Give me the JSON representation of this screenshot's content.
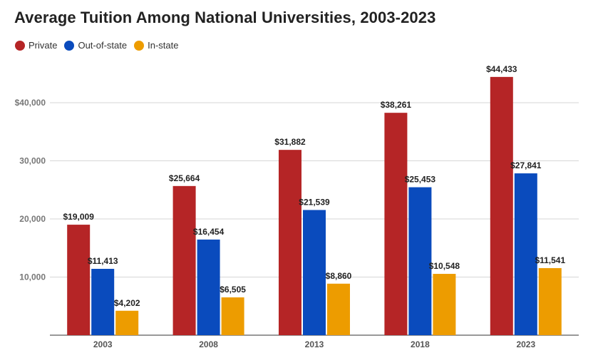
{
  "chart_data": {
    "type": "bar",
    "title": "Average Tuition Among National Universities, 2003-2023",
    "categories": [
      "2003",
      "2008",
      "2013",
      "2018",
      "2023"
    ],
    "series": [
      {
        "name": "Private",
        "color": "#b52526",
        "values": [
          19009,
          25664,
          31882,
          38261,
          44433
        ],
        "labels": [
          "$19,009",
          "$25,664",
          "$31,882",
          "$38,261",
          "$44,433"
        ]
      },
      {
        "name": "Out-of-state",
        "color": "#0a4bbd",
        "values": [
          11413,
          16454,
          21539,
          25453,
          27841
        ],
        "labels": [
          "$11,413",
          "$16,454",
          "$21,539",
          "$25,453",
          "$27,841"
        ]
      },
      {
        "name": "In-state",
        "color": "#ed9c00",
        "values": [
          4202,
          6505,
          8860,
          10548,
          11541
        ],
        "labels": [
          "$4,202",
          "$6,505",
          "$8,860",
          "$10,548",
          "$11,541"
        ]
      }
    ],
    "yticks": [
      10000,
      20000,
      30000,
      40000
    ],
    "ytick_labels": [
      "10,000",
      "20,000",
      "30,000",
      "$40,000"
    ],
    "ylim": [
      0,
      48000
    ],
    "grid": true,
    "legend_position": "top-left",
    "xlabel": "",
    "ylabel": ""
  }
}
